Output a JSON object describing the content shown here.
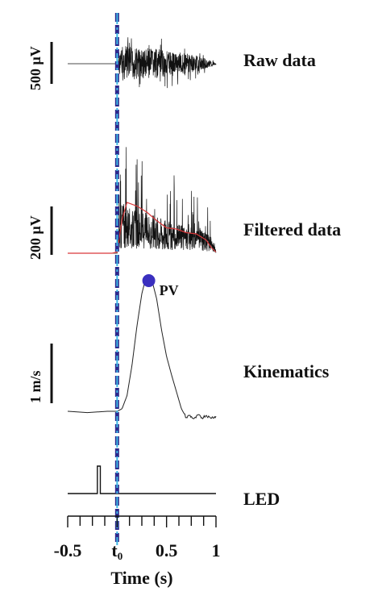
{
  "chart_data": {
    "type": "line",
    "x_axis": {
      "label": "Time (s)",
      "range": [
        -0.5,
        1.0
      ],
      "ticks": [
        {
          "value": -0.5,
          "label": "-0.5"
        },
        {
          "value": 0.0,
          "label": "t",
          "sub": "0"
        },
        {
          "value": 0.5,
          "label": "0.5"
        },
        {
          "value": 1.0,
          "label": "1"
        }
      ],
      "minor_step": 0.125
    },
    "onset_marker": {
      "x": 0.0,
      "style": "dashed",
      "colors": [
        "#2d2a8c",
        "#3fb8e6"
      ]
    },
    "panels": [
      {
        "id": "raw",
        "label": "Raw data",
        "scale_bar": "500 μV",
        "series": [
          {
            "kind": "emg-raw",
            "color": "#111111",
            "baseline_until": 0.0,
            "envelope": {
              "x": [
                0.0,
                0.05,
                0.15,
                0.3,
                0.5,
                0.7,
                0.85,
                0.95,
                1.0
              ],
              "amp": [
                0.2,
                0.95,
                0.85,
                0.8,
                0.7,
                0.55,
                0.35,
                0.15,
                0.05
              ]
            }
          }
        ]
      },
      {
        "id": "filtered",
        "label": "Filtered data",
        "scale_bar": "200 μV",
        "series": [
          {
            "kind": "emg-rectified",
            "color": "#111111",
            "baseline_until": 0.0,
            "envelope": {
              "x": [
                0.0,
                0.05,
                0.15,
                0.3,
                0.5,
                0.7,
                0.85,
                0.95,
                1.0
              ],
              "amp": [
                0.2,
                0.95,
                0.8,
                0.75,
                0.6,
                0.5,
                0.45,
                0.3,
                0.05
              ]
            }
          },
          {
            "kind": "smoothed-envelope",
            "color": "#d9383a",
            "x": [
              -0.5,
              -0.05,
              0.0,
              0.05,
              0.1,
              0.2,
              0.3,
              0.4,
              0.5,
              0.6,
              0.7,
              0.8,
              0.9,
              0.95,
              1.0
            ],
            "y": [
              0.0,
              0.0,
              0.01,
              0.28,
              0.42,
              0.39,
              0.34,
              0.27,
              0.21,
              0.2,
              0.17,
              0.16,
              0.11,
              0.05,
              0.01
            ]
          }
        ]
      },
      {
        "id": "kinematics",
        "label": "Kinematics",
        "scale_bar": "1 m/s",
        "marker": {
          "label": "PV",
          "x": 0.32,
          "color": "#3a2fbf"
        },
        "series": [
          {
            "kind": "velocity",
            "color": "#222222",
            "x": [
              -0.5,
              -0.3,
              -0.1,
              0.0,
              0.05,
              0.1,
              0.15,
              0.2,
              0.25,
              0.28,
              0.32,
              0.36,
              0.4,
              0.45,
              0.5,
              0.55,
              0.6,
              0.65,
              0.7,
              0.73,
              0.78,
              0.82,
              0.86,
              0.9,
              0.94,
              1.0
            ],
            "y": [
              0.0,
              -0.01,
              0.0,
              0.0,
              0.02,
              0.12,
              0.35,
              0.65,
              0.9,
              0.99,
              1.0,
              0.98,
              0.86,
              0.62,
              0.42,
              0.28,
              0.15,
              0.02,
              -0.05,
              -0.03,
              -0.06,
              -0.03,
              -0.05,
              -0.03,
              -0.05,
              -0.04
            ]
          }
        ]
      },
      {
        "id": "led",
        "label": "LED",
        "series": [
          {
            "kind": "step",
            "color": "#111111",
            "x": [
              -0.5,
              -0.2,
              -0.2,
              -0.17,
              -0.17,
              1.0
            ],
            "y": [
              0,
              0,
              1,
              1,
              0,
              0
            ]
          }
        ]
      }
    ]
  }
}
